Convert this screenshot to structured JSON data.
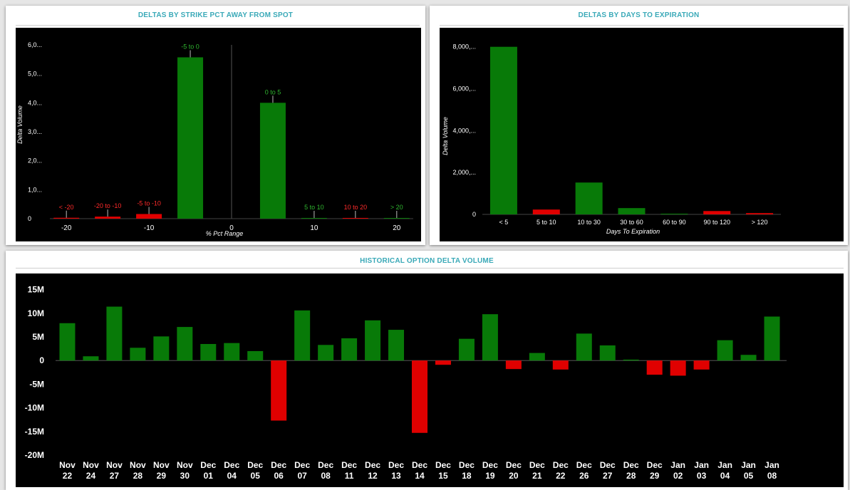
{
  "panels": {
    "strike": {
      "title": "DELTAS BY STRIKE PCT AWAY FROM SPOT"
    },
    "expiration": {
      "title": "DELTAS BY DAYS TO EXPIRATION"
    },
    "history": {
      "title": "HISTORICAL OPTION DELTA VOLUME"
    }
  },
  "colors": {
    "positive": "#087a08",
    "negative": "#e00000",
    "background": "#000000",
    "axis_text": "#ffffff",
    "title": "#3aa9b8"
  },
  "chart_data": [
    {
      "id": "strike",
      "type": "bar",
      "xlabel": "% Pct Range",
      "ylabel": "Delta Volume",
      "x_ticks": [
        -20,
        -10,
        0,
        10,
        20
      ],
      "x_range": [
        -22,
        22
      ],
      "y_ticks": [
        0,
        1000,
        2000,
        3000,
        4000,
        5000,
        6000
      ],
      "y_tick_labels": [
        "0",
        "1,0...",
        "2,0...",
        "3,0...",
        "4,0...",
        "5,0...",
        "6,0..."
      ],
      "y_range": [
        0,
        6000
      ],
      "bars": [
        {
          "label": "< -20",
          "center": -20,
          "value": 30,
          "color": "negative"
        },
        {
          "label": "-20 to -10",
          "center": -15,
          "value": 70,
          "color": "negative"
        },
        {
          "label": "-5 to -10",
          "center": -10,
          "value": 160,
          "color": "negative"
        },
        {
          "label": "-5 to 0",
          "center": -5,
          "value": 5570,
          "color": "positive"
        },
        {
          "label": "0 to 5",
          "center": 5,
          "value": 4000,
          "color": "positive"
        },
        {
          "label": "5 to 10",
          "center": 10,
          "value": 20,
          "color": "positive"
        },
        {
          "label": "10 to 20",
          "center": 15,
          "value": 15,
          "color": "negative"
        },
        {
          "label": "> 20",
          "center": 20,
          "value": 10,
          "color": "positive"
        }
      ]
    },
    {
      "id": "expiration",
      "type": "bar",
      "xlabel": "Days To Expiration",
      "ylabel": "Delta Volume",
      "y_ticks": [
        0,
        2000,
        4000,
        6000,
        8000
      ],
      "y_tick_labels": [
        "0",
        "2,000,...",
        "4,000,...",
        "6,000,...",
        "8,000,..."
      ],
      "y_range": [
        0,
        8500
      ],
      "categories": [
        "< 5",
        "5 to 10",
        "10 to 30",
        "30 to 60",
        "60 to 90",
        "90 to 120",
        "> 120"
      ],
      "values": [
        8000,
        230,
        1520,
        300,
        30,
        160,
        60
      ],
      "bar_colors": [
        "positive",
        "negative",
        "positive",
        "positive",
        "positive",
        "negative",
        "negative"
      ]
    },
    {
      "id": "history",
      "type": "bar",
      "xlabel": "",
      "ylabel": "",
      "y_ticks": [
        -20,
        -15,
        -10,
        -5,
        0,
        5,
        10,
        15
      ],
      "y_tick_labels": [
        "-20M",
        "-15M",
        "-10M",
        "-5M",
        "0",
        "5M",
        "10M",
        "15M"
      ],
      "y_range": [
        -20,
        16
      ],
      "categories": [
        [
          "Nov",
          "22"
        ],
        [
          "Nov",
          "24"
        ],
        [
          "Nov",
          "27"
        ],
        [
          "Nov",
          "28"
        ],
        [
          "Nov",
          "29"
        ],
        [
          "Nov",
          "30"
        ],
        [
          "Dec",
          "01"
        ],
        [
          "Dec",
          "04"
        ],
        [
          "Dec",
          "05"
        ],
        [
          "Dec",
          "06"
        ],
        [
          "Dec",
          "07"
        ],
        [
          "Dec",
          "08"
        ],
        [
          "Dec",
          "11"
        ],
        [
          "Dec",
          "12"
        ],
        [
          "Dec",
          "13"
        ],
        [
          "Dec",
          "14"
        ],
        [
          "Dec",
          "15"
        ],
        [
          "Dec",
          "18"
        ],
        [
          "Dec",
          "19"
        ],
        [
          "Dec",
          "20"
        ],
        [
          "Dec",
          "21"
        ],
        [
          "Dec",
          "22"
        ],
        [
          "Dec",
          "26"
        ],
        [
          "Dec",
          "27"
        ],
        [
          "Dec",
          "28"
        ],
        [
          "Dec",
          "29"
        ],
        [
          "Jan",
          "02"
        ],
        [
          "Jan",
          "03"
        ],
        [
          "Jan",
          "04"
        ],
        [
          "Jan",
          "05"
        ],
        [
          "Jan",
          "08"
        ]
      ],
      "values": [
        7.9,
        0.9,
        11.4,
        2.7,
        5.1,
        7.1,
        3.5,
        3.7,
        2.0,
        -12.7,
        10.6,
        3.3,
        4.7,
        8.5,
        6.5,
        -15.3,
        -0.9,
        4.6,
        9.8,
        -1.8,
        1.6,
        -1.9,
        5.7,
        3.2,
        0.2,
        -3.0,
        -3.2,
        -1.9,
        4.3,
        1.2,
        9.3
      ]
    }
  ]
}
